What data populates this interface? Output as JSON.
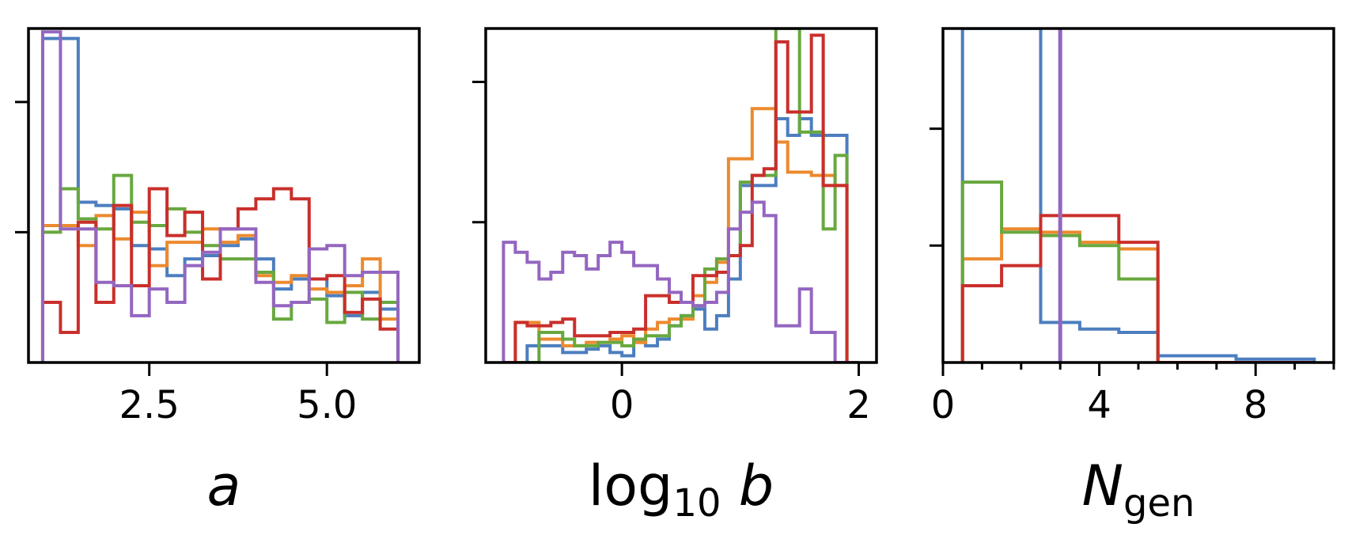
{
  "colors": {
    "blue": "#4c7ebf",
    "orange": "#ec8a2e",
    "green": "#68a83f",
    "red": "#c92f2b",
    "purple": "#9466c0"
  },
  "chart_data": [
    {
      "type": "histogram",
      "xlabel": "a",
      "xlim": [
        0.8,
        6.3
      ],
      "ylim": [
        0,
        1.0
      ],
      "xticks": [
        2.5,
        5.0
      ],
      "xtick_labels": [
        "2.5",
        "5.0"
      ],
      "yticks": [
        0.39,
        0.78
      ],
      "grid": false,
      "bin_edges": [
        1.0,
        1.25,
        1.5,
        1.75,
        2.0,
        2.25,
        2.5,
        2.75,
        3.0,
        3.25,
        3.5,
        3.75,
        4.0,
        4.25,
        4.5,
        4.75,
        5.0,
        5.25,
        5.5,
        5.75,
        6.0
      ],
      "series": [
        {
          "color": "blue",
          "values": [
            0.97,
            0.97,
            0.48,
            0.47,
            0.46,
            0.35,
            0.34,
            0.26,
            0.31,
            0.32,
            0.35,
            0.37,
            0.31,
            0.22,
            0.25,
            0.25,
            0.2,
            0.14,
            0.21,
            0.16
          ]
        },
        {
          "color": "orange",
          "values": [
            0.41,
            0.41,
            0.35,
            0.44,
            0.37,
            0.45,
            0.29,
            0.36,
            0.36,
            0.4,
            0.36,
            0.38,
            0.26,
            0.24,
            0.26,
            0.22,
            0.21,
            0.23,
            0.31,
            0.13
          ]
        },
        {
          "color": "green",
          "values": [
            0.39,
            0.52,
            0.43,
            0.4,
            0.56,
            0.42,
            0.41,
            0.46,
            0.39,
            0.35,
            0.31,
            0.31,
            0.27,
            0.13,
            0.18,
            0.19,
            0.12,
            0.21,
            0.13,
            0.18
          ]
        },
        {
          "color": "red",
          "values": [
            0.18,
            0.09,
            0.42,
            0.18,
            0.47,
            0.23,
            0.52,
            0.38,
            0.45,
            0.25,
            0.4,
            0.46,
            0.49,
            0.52,
            0.49,
            0.25,
            0.26,
            0.15,
            0.19,
            0.1
          ]
        },
        {
          "color": "purple",
          "values": [
            0.99,
            0.4,
            0.4,
            0.24,
            0.23,
            0.14,
            0.22,
            0.18,
            0.29,
            0.33,
            0.4,
            0.4,
            0.24,
            0.17,
            0.18,
            0.34,
            0.35,
            0.26,
            0.27,
            0.27
          ]
        }
      ]
    },
    {
      "type": "histogram",
      "xlabel": "log10 b",
      "xlim": [
        -1.15,
        2.15
      ],
      "ylim": [
        0,
        1.0
      ],
      "xticks": [
        0,
        2
      ],
      "xtick_labels": [
        "0",
        "2"
      ],
      "yticks": [
        0.42,
        0.84
      ],
      "grid": false,
      "bin_edges": [
        -1.0,
        -0.9,
        -0.8,
        -0.7,
        -0.6,
        -0.5,
        -0.4,
        -0.3,
        -0.2,
        -0.1,
        0.0,
        0.1,
        0.2,
        0.3,
        0.4,
        0.5,
        0.6,
        0.7,
        0.8,
        0.9,
        1.0,
        1.1,
        1.2,
        1.3,
        1.4,
        1.5,
        1.6,
        1.7,
        1.8,
        1.9,
        2.0
      ],
      "series": [
        {
          "color": "blue",
          "values": [
            0.0,
            0.0,
            0.05,
            0.05,
            0.05,
            0.03,
            0.03,
            0.04,
            0.05,
            0.03,
            0.02,
            0.06,
            0.05,
            0.07,
            0.11,
            0.14,
            0.16,
            0.1,
            0.14,
            0.25,
            0.53,
            0.53,
            0.53,
            0.73,
            0.68,
            0.73,
            0.68,
            0.68,
            0.68,
            0.0
          ]
        },
        {
          "color": "orange",
          "values": [
            0.0,
            0.12,
            0.12,
            0.07,
            0.07,
            0.05,
            0.05,
            0.06,
            0.06,
            0.07,
            0.08,
            0.06,
            0.1,
            0.12,
            0.13,
            0.13,
            0.2,
            0.24,
            0.3,
            0.61,
            0.61,
            0.76,
            0.76,
            0.66,
            0.57,
            0.57,
            0.56,
            0.56,
            0.53,
            0.0
          ]
        },
        {
          "color": "green",
          "values": [
            0.0,
            0.0,
            0.0,
            0.09,
            0.09,
            0.07,
            0.05,
            0.05,
            0.06,
            0.06,
            0.05,
            0.07,
            0.08,
            0.08,
            0.11,
            0.14,
            0.17,
            0.28,
            0.31,
            0.32,
            0.54,
            0.56,
            0.56,
            1.0,
            1.0,
            0.69,
            0.69,
            0.4,
            0.62,
            0.0
          ]
        },
        {
          "color": "red",
          "values": [
            0.0,
            0.12,
            0.11,
            0.11,
            0.12,
            0.13,
            0.08,
            0.08,
            0.08,
            0.09,
            0.09,
            0.1,
            0.2,
            0.2,
            0.18,
            0.18,
            0.26,
            0.26,
            0.27,
            0.32,
            0.35,
            0.56,
            0.58,
            0.96,
            0.75,
            0.75,
            0.98,
            0.53,
            0.53,
            0.0
          ]
        },
        {
          "color": "purple",
          "values": [
            0.36,
            0.33,
            0.3,
            0.25,
            0.27,
            0.33,
            0.32,
            0.28,
            0.32,
            0.36,
            0.33,
            0.29,
            0.29,
            0.25,
            0.21,
            0.18,
            0.17,
            0.18,
            0.21,
            0.4,
            0.45,
            0.48,
            0.44,
            0.11,
            0.11,
            0.22,
            0.09,
            0.09,
            0.0,
            0.0
          ]
        }
      ]
    },
    {
      "type": "histogram",
      "xlabel": "N_gen",
      "xlim": [
        0,
        10
      ],
      "ylim": [
        0,
        1.0
      ],
      "xticks": [
        0,
        4,
        8
      ],
      "xtick_labels": [
        "0",
        "4",
        "8"
      ],
      "xminor_ticks": [
        1,
        2,
        3,
        5,
        6,
        7,
        9,
        10
      ],
      "yticks": [
        0.35,
        0.7
      ],
      "grid": false,
      "bin_edges": [
        0.5,
        1.5,
        2.5,
        3.5,
        4.5,
        5.5,
        6.5,
        7.5,
        8.5,
        9.5
      ],
      "series": [
        {
          "color": "blue",
          "values": [
            1.0,
            1.0,
            0.12,
            0.1,
            0.09,
            0.02,
            0.02,
            0.01,
            0.01
          ]
        },
        {
          "color": "orange",
          "values": [
            0.31,
            0.4,
            0.39,
            0.36,
            0.34,
            0.0,
            0.0,
            0.0,
            0.0
          ]
        },
        {
          "color": "green",
          "values": [
            0.54,
            0.39,
            0.38,
            0.35,
            0.25,
            0.0,
            0.0,
            0.0,
            0.0
          ]
        },
        {
          "color": "red",
          "values": [
            0.23,
            0.29,
            0.44,
            0.44,
            0.36,
            0.0,
            0.0,
            0.0,
            0.0
          ]
        }
      ],
      "vlines": [
        {
          "color": "purple",
          "x": 3
        }
      ]
    }
  ]
}
